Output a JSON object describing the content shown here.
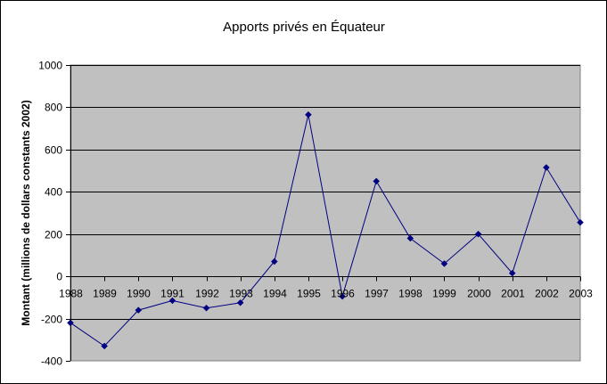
{
  "chart_data": {
    "type": "line",
    "title": "Apports privés en Équateur",
    "xlabel": "",
    "ylabel": "Montant (millions de dollars constants 2002)",
    "ylim": [
      -400,
      1000
    ],
    "yticks": [
      -400,
      -200,
      0,
      200,
      400,
      600,
      800,
      1000
    ],
    "ytick_labels": [
      "-400",
      "-200",
      "0",
      "200",
      "400",
      "600",
      "800",
      "1000"
    ],
    "categories": [
      "1988",
      "1989",
      "1990",
      "1991",
      "1992",
      "1993",
      "1994",
      "1995",
      "1996",
      "1997",
      "1998",
      "1999",
      "2000",
      "2001",
      "2002",
      "2003"
    ],
    "series": [
      {
        "values": [
          -220,
          -330,
          -160,
          -115,
          -150,
          -125,
          70,
          765,
          -95,
          450,
          180,
          60,
          200,
          15,
          515,
          255
        ]
      }
    ],
    "grid": true,
    "legend": "none",
    "colors": {
      "plot_bg": "#c0c0c0",
      "line": "#000080",
      "grid": "#000000"
    }
  }
}
